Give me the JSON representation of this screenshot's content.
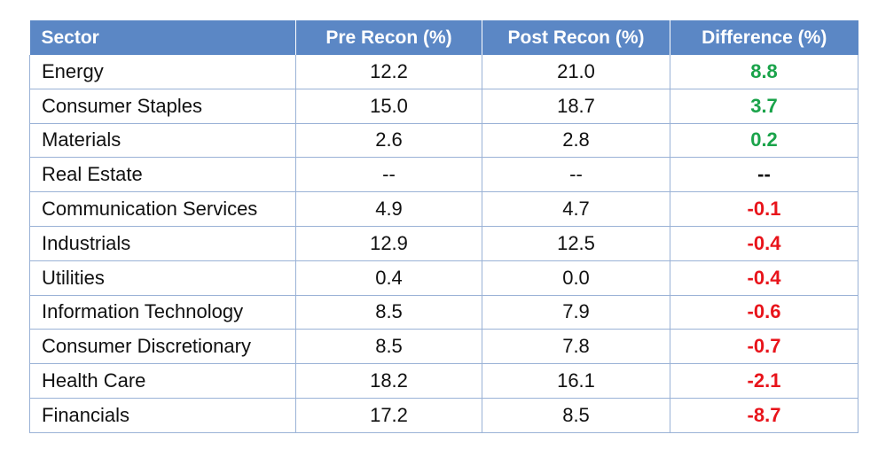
{
  "chart_data": {
    "type": "table",
    "columns": [
      "Sector",
      "Pre Recon (%)",
      "Post Recon (%)",
      "Difference (%)"
    ],
    "rows": [
      {
        "sector": "Energy",
        "pre": "12.2",
        "post": "21.0",
        "diff": "8.8",
        "sign": "pos"
      },
      {
        "sector": "Consumer Staples",
        "pre": "15.0",
        "post": "18.7",
        "diff": "3.7",
        "sign": "pos"
      },
      {
        "sector": "Materials",
        "pre": "2.6",
        "post": "2.8",
        "diff": "0.2",
        "sign": "pos"
      },
      {
        "sector": "Real Estate",
        "pre": "--",
        "post": "--",
        "diff": "--",
        "sign": "neu"
      },
      {
        "sector": "Communication Services",
        "pre": "4.9",
        "post": "4.7",
        "diff": "-0.1",
        "sign": "neg"
      },
      {
        "sector": "Industrials",
        "pre": "12.9",
        "post": "12.5",
        "diff": "-0.4",
        "sign": "neg"
      },
      {
        "sector": "Utilities",
        "pre": "0.4",
        "post": "0.0",
        "diff": "-0.4",
        "sign": "neg"
      },
      {
        "sector": "Information Technology",
        "pre": "8.5",
        "post": "7.9",
        "diff": "-0.6",
        "sign": "neg"
      },
      {
        "sector": "Consumer Discretionary",
        "pre": "8.5",
        "post": "7.8",
        "diff": "-0.7",
        "sign": "neg"
      },
      {
        "sector": "Health Care",
        "pre": "18.2",
        "post": "16.1",
        "diff": "-2.1",
        "sign": "neg"
      },
      {
        "sector": "Financials",
        "pre": "17.2",
        "post": "8.5",
        "diff": "-8.7",
        "sign": "neg"
      }
    ],
    "colors": {
      "header_bg": "#5b87c5",
      "positive": "#1aa34a",
      "negative": "#e8141b",
      "border": "#9ab2d6"
    }
  }
}
